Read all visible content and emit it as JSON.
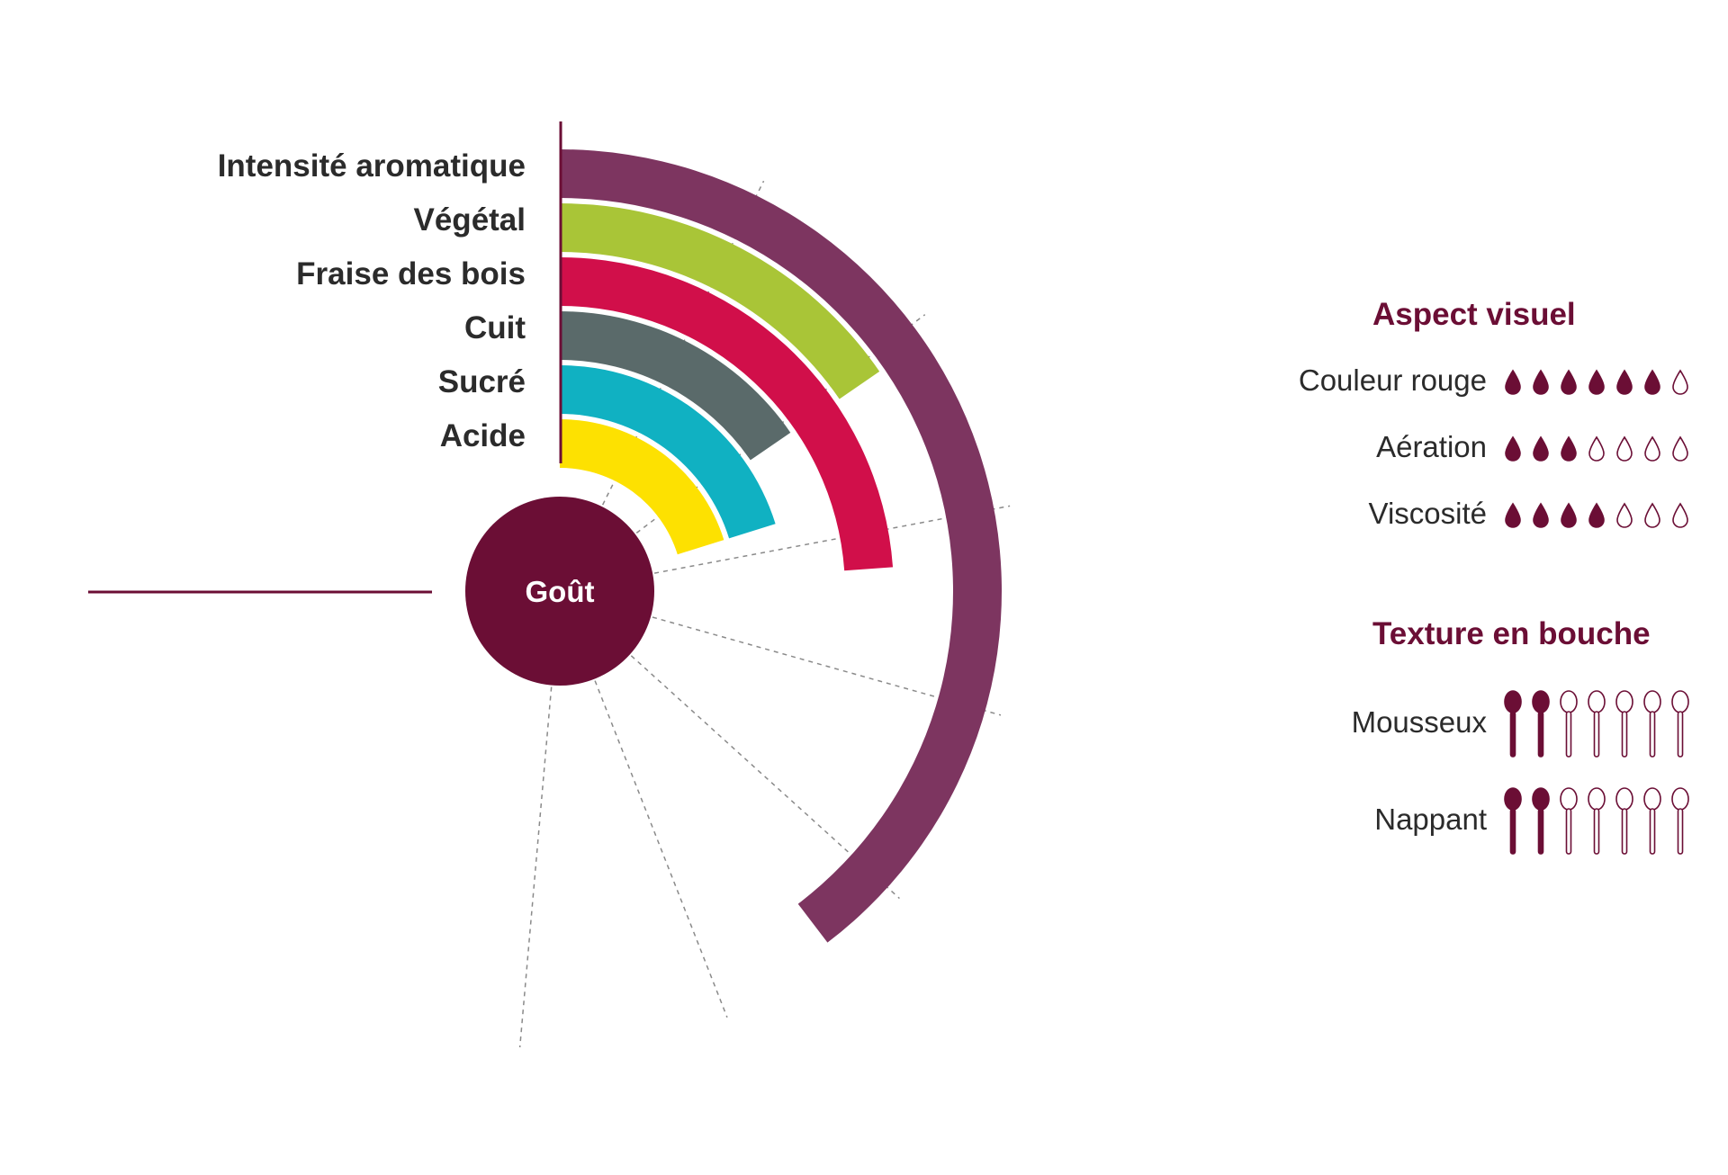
{
  "chart_data": {
    "type": "radial-bar",
    "center_label": "Goût",
    "max": 7,
    "categories": [
      "Intensité aromatique",
      "Végétal",
      "Fraise des bois",
      "Cuit",
      "Sucré",
      "Acide"
    ],
    "values": [
      5.4,
      2.1,
      3.25,
      2.1,
      2.75,
      2.75
    ],
    "colors": [
      "#7d3560",
      "#a9c537",
      "#d10f4a",
      "#5a6a6a",
      "#10b1c2",
      "#fde101"
    ]
  },
  "aspect_visuel": {
    "title": "Aspect visuel",
    "max": 7,
    "rows": [
      {
        "label": "Couleur rouge",
        "value": 6
      },
      {
        "label": "Aération",
        "value": 3
      },
      {
        "label": "Viscosité",
        "value": 4
      }
    ]
  },
  "texture": {
    "title": "Texture en bouche",
    "max": 7,
    "rows": [
      {
        "label": "Mousseux",
        "value": 2
      },
      {
        "label": "Nappant",
        "value": 2
      }
    ]
  },
  "colors": {
    "accent": "#6b0e35",
    "text": "#2b2b2b"
  }
}
